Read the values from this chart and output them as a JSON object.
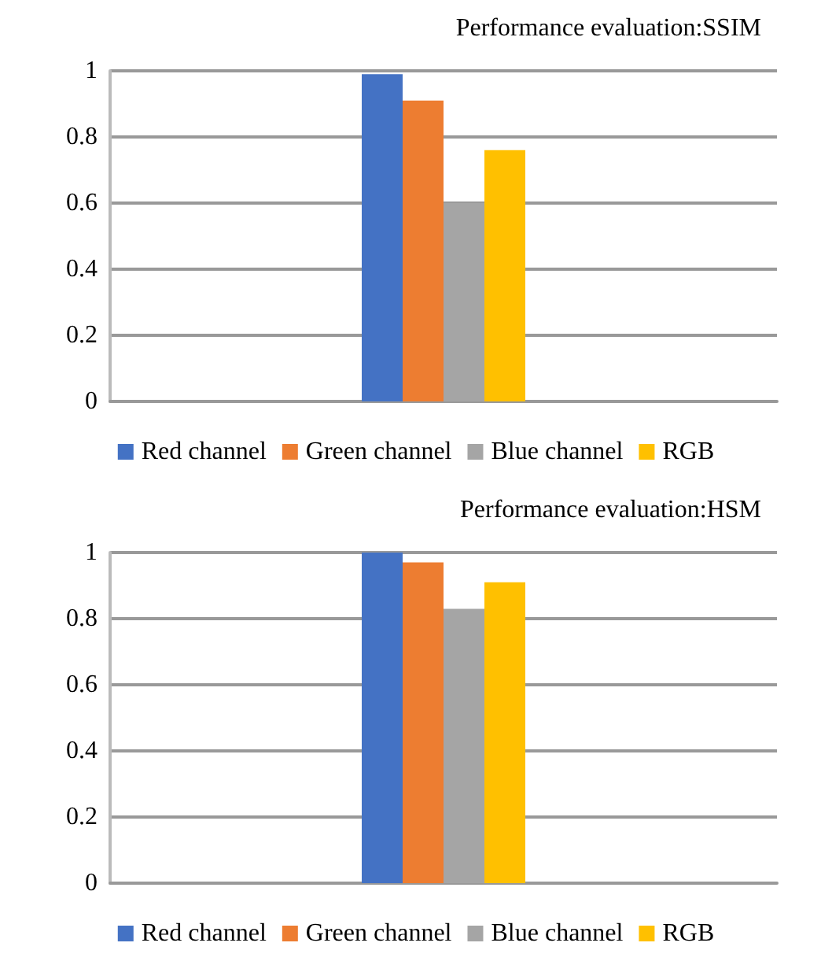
{
  "chart_data": [
    {
      "type": "bar",
      "title": "Performance evaluation:SSIM",
      "categories": [
        null
      ],
      "series": [
        {
          "name": "Red channel",
          "color": "#4472c4",
          "values": [
            0.99
          ]
        },
        {
          "name": "Green channel",
          "color": "#ed7d31",
          "values": [
            0.91
          ]
        },
        {
          "name": "Blue channel",
          "color": "#a5a5a5",
          "values": [
            0.6
          ]
        },
        {
          "name": "RGB",
          "color": "#ffc000",
          "values": [
            0.76
          ]
        }
      ],
      "ylim": [
        0,
        1
      ],
      "yticks": [
        0,
        0.2,
        0.4,
        0.6,
        0.8,
        1
      ],
      "grid": "y",
      "legend": "bottom"
    },
    {
      "type": "bar",
      "title": "Performance evaluation:HSM",
      "categories": [
        null
      ],
      "series": [
        {
          "name": "Red channel",
          "color": "#4472c4",
          "values": [
            1.0
          ]
        },
        {
          "name": "Green channel",
          "color": "#ed7d31",
          "values": [
            0.97
          ]
        },
        {
          "name": "Blue channel",
          "color": "#a5a5a5",
          "values": [
            0.83
          ]
        },
        {
          "name": "RGB",
          "color": "#ffc000",
          "values": [
            0.91
          ]
        }
      ],
      "ylim": [
        0,
        1
      ],
      "yticks": [
        0,
        0.2,
        0.4,
        0.6,
        0.8,
        1
      ],
      "grid": "y",
      "legend": "bottom"
    }
  ]
}
